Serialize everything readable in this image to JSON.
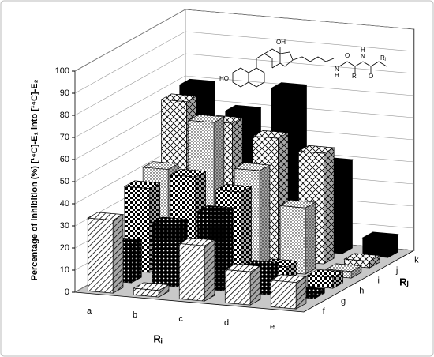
{
  "chart_data": {
    "type": "bar3d",
    "y_label": "Percentage of inhibition (%) [¹⁴C]-E₁ into [¹⁴C]-E₂",
    "x_label": "Rᵢ",
    "depth_label": "Rⱼ",
    "categories": [
      "a",
      "b",
      "c",
      "d",
      "e"
    ],
    "series": [
      {
        "name": "f",
        "pattern": "diag",
        "values": [
          33,
          3,
          25,
          15,
          12
        ]
      },
      {
        "name": "g",
        "pattern": "dots",
        "values": [
          17,
          28,
          35,
          12,
          2
        ]
      },
      {
        "name": "h",
        "pattern": "checker",
        "values": [
          38,
          45,
          40,
          8,
          5
        ]
      },
      {
        "name": "i",
        "pattern": "fine",
        "values": [
          42,
          65,
          45,
          30,
          3
        ]
      },
      {
        "name": "j",
        "pattern": "cross",
        "values": [
          68,
          60,
          55,
          50,
          3
        ]
      },
      {
        "name": "k",
        "pattern": "solid",
        "values": [
          70,
          60,
          72,
          40,
          8
        ]
      }
    ],
    "ylim": [
      0,
      100
    ],
    "yticks": [
      0,
      10,
      20,
      30,
      40,
      50,
      60,
      70,
      80,
      90,
      100
    ],
    "grid": true,
    "structure_labels": [
      "OH",
      "HO",
      "N",
      "H",
      "O",
      "Rᵢ",
      "N",
      "H",
      "O",
      "Rⱼ"
    ]
  }
}
